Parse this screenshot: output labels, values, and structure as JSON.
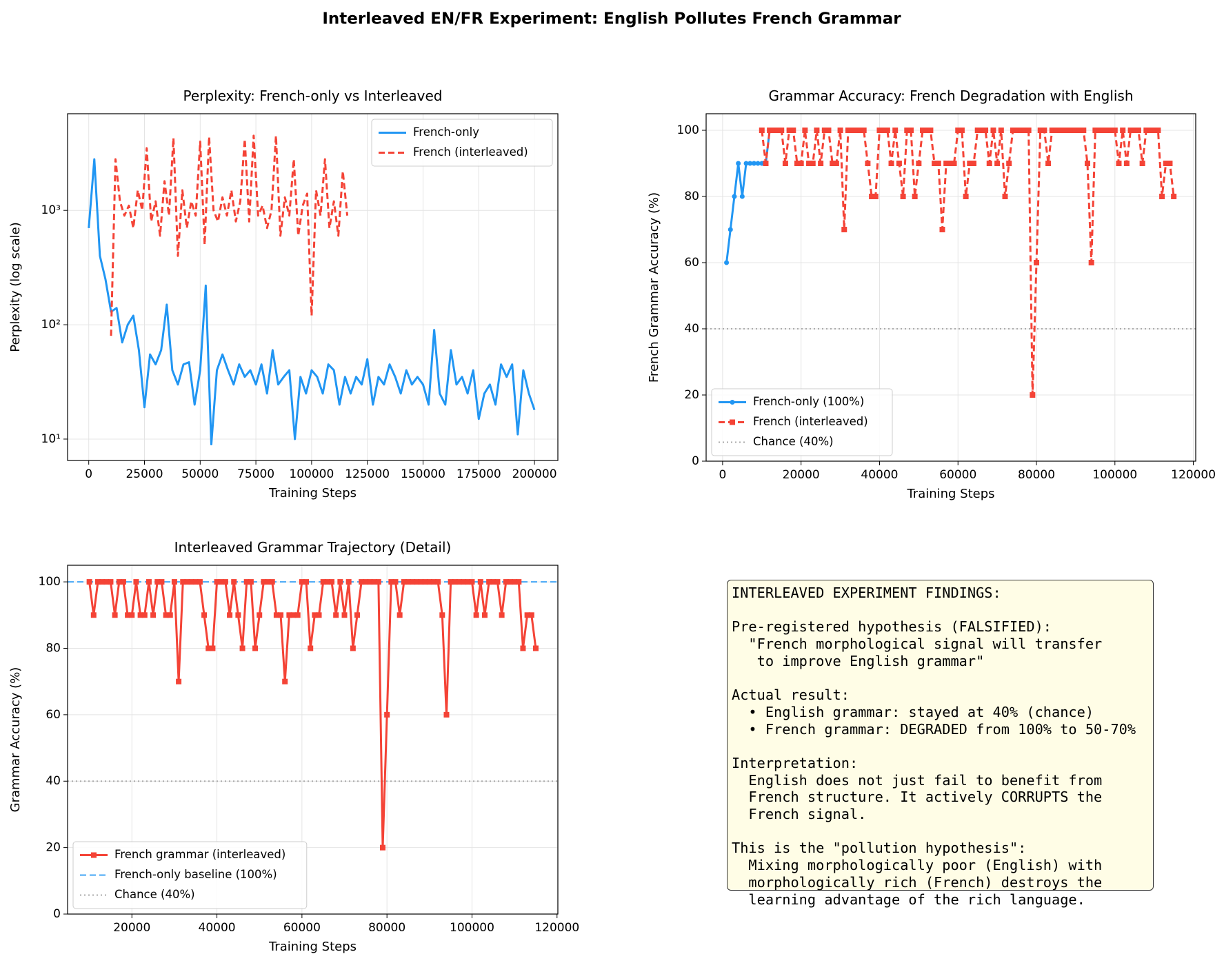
{
  "title": "Interleaved EN/FR Experiment: English Pollutes French Grammar",
  "chart_data": [
    {
      "type": "line",
      "title": "Perplexity: French-only vs Interleaved",
      "xlabel": "Training Steps",
      "ylabel": "Perplexity (log scale)",
      "yscale": "log",
      "grid": true,
      "legend": "upper right",
      "xlim": [
        -9500,
        210500
      ],
      "xticks": [
        0,
        25000,
        50000,
        75000,
        100000,
        125000,
        150000,
        175000,
        200000
      ],
      "ylim": [
        6.5,
        7000
      ],
      "yticks": [
        {
          "value": 10,
          "label": "10¹"
        },
        {
          "value": 100,
          "label": "10²"
        },
        {
          "value": 1000,
          "label": "10³"
        }
      ],
      "series": [
        {
          "name": "French-only",
          "color": "#2196f3",
          "linestyle": "solid",
          "marker": "none",
          "x": [
            0,
            2500,
            5000,
            7500,
            10000,
            12500,
            15000,
            17500,
            20000,
            22500,
            25000,
            27500,
            30000,
            32500,
            35000,
            37500,
            40000,
            42500,
            45000,
            47500,
            50000,
            52500,
            55000,
            57500,
            60000,
            62500,
            65000,
            67500,
            70000,
            72500,
            75000,
            77500,
            80000,
            82500,
            85000,
            87500,
            90000,
            92500,
            95000,
            97500,
            100000,
            102500,
            105000,
            107500,
            110000,
            112500,
            115000,
            117500,
            120000,
            122500,
            125000,
            127500,
            130000,
            132500,
            135000,
            137500,
            140000,
            142500,
            145000,
            147500,
            150000,
            152500,
            155000,
            157500,
            160000,
            162500,
            165000,
            167500,
            170000,
            172500,
            175000,
            177500,
            180000,
            182500,
            185000,
            187500,
            190000,
            192500,
            195000,
            197500,
            200000
          ],
          "values": [
            700,
            2800,
            400,
            250,
            130,
            140,
            70,
            100,
            120,
            60,
            19,
            55,
            45,
            60,
            150,
            40,
            30,
            45,
            47,
            20,
            40,
            220,
            9,
            40,
            55,
            40,
            30,
            45,
            35,
            40,
            30,
            45,
            25,
            60,
            30,
            35,
            40,
            10,
            35,
            25,
            40,
            35,
            25,
            45,
            40,
            20,
            35,
            25,
            35,
            30,
            50,
            20,
            35,
            30,
            45,
            35,
            25,
            40,
            30,
            35,
            30,
            20,
            90,
            25,
            20,
            60,
            30,
            35,
            25,
            40,
            15,
            25,
            30,
            20,
            45,
            35,
            45,
            11,
            40,
            25,
            18
          ]
        },
        {
          "name": "French (interleaved)",
          "color": "#f44336",
          "linestyle": "dashed",
          "marker": "none",
          "x": [
            10000,
            12000,
            14000,
            16000,
            18000,
            20000,
            22000,
            24000,
            26000,
            28000,
            30000,
            32000,
            34000,
            36000,
            38000,
            40000,
            42000,
            44000,
            46000,
            48000,
            50000,
            52000,
            54000,
            56000,
            58000,
            60000,
            62000,
            64000,
            66000,
            68000,
            70000,
            72000,
            74000,
            76000,
            78000,
            80000,
            82000,
            84000,
            86000,
            88000,
            90000,
            92000,
            94000,
            96000,
            98000,
            100000,
            102000,
            104000,
            106000,
            108000,
            110000,
            112000,
            114000,
            116000
          ],
          "values": [
            80,
            2800,
            1200,
            900,
            1100,
            700,
            1500,
            1000,
            3500,
            800,
            1200,
            600,
            1800,
            900,
            4300,
            400,
            1500,
            700,
            1200,
            900,
            4000,
            500,
            4400,
            1000,
            800,
            1300,
            900,
            1500,
            800,
            1200,
            4200,
            800,
            4500,
            900,
            1100,
            700,
            1000,
            4500,
            600,
            1300,
            900,
            2800,
            600,
            1100,
            1400,
            120,
            1500,
            900,
            2800,
            700,
            1200,
            600,
            2200,
            900
          ]
        }
      ]
    },
    {
      "type": "line",
      "title": "Grammar Accuracy: French Degradation with English",
      "xlabel": "Training Steps",
      "ylabel": "French Grammar Accuracy (%)",
      "grid": true,
      "legend": "lower left",
      "xlim": [
        -4200,
        120600
      ],
      "xticks": [
        0,
        20000,
        40000,
        60000,
        80000,
        100000,
        120000
      ],
      "ylim": [
        0,
        105
      ],
      "yticks": [
        0,
        20,
        40,
        60,
        80,
        100
      ],
      "series": [
        {
          "name": "French-only (100%)",
          "color": "#2196f3",
          "linestyle": "solid",
          "marker": "o",
          "x": [
            1000,
            2000,
            3000,
            4000,
            5000,
            6000,
            7000,
            8000,
            9000,
            10000,
            11000,
            12000,
            13000
          ],
          "values": [
            60,
            70,
            80,
            90,
            80,
            90,
            90,
            90,
            90,
            90,
            90,
            100,
            100
          ]
        },
        {
          "name": "French (interleaved)",
          "color": "#f44336",
          "linestyle": "dashed",
          "marker": "s",
          "x": [
            10000,
            11000,
            12000,
            13000,
            14000,
            15000,
            16000,
            17000,
            18000,
            19000,
            20000,
            21000,
            22000,
            23000,
            24000,
            25000,
            26000,
            27000,
            28000,
            29000,
            30000,
            31000,
            32000,
            33000,
            34000,
            35000,
            36000,
            37000,
            38000,
            39000,
            40000,
            41000,
            42000,
            43000,
            44000,
            45000,
            46000,
            47000,
            48000,
            49000,
            50000,
            51000,
            52000,
            53000,
            54000,
            55000,
            56000,
            57000,
            58000,
            59000,
            60000,
            61000,
            62000,
            63000,
            64000,
            65000,
            66000,
            67000,
            68000,
            69000,
            70000,
            71000,
            72000,
            73000,
            74000,
            75000,
            76000,
            77000,
            78000,
            79000,
            80000,
            81000,
            82000,
            83000,
            84000,
            85000,
            86000,
            87000,
            88000,
            89000,
            90000,
            91000,
            92000,
            93000,
            94000,
            95000,
            96000,
            97000,
            98000,
            99000,
            100000,
            101000,
            102000,
            103000,
            104000,
            105000,
            106000,
            107000,
            108000,
            109000,
            110000,
            111000,
            112000,
            113000,
            114000,
            115000
          ],
          "values": [
            100,
            90,
            100,
            100,
            100,
            100,
            90,
            100,
            100,
            90,
            90,
            100,
            90,
            90,
            100,
            90,
            100,
            100,
            90,
            90,
            100,
            70,
            100,
            100,
            100,
            100,
            100,
            90,
            80,
            80,
            100,
            100,
            100,
            90,
            100,
            90,
            80,
            100,
            100,
            80,
            90,
            100,
            100,
            100,
            90,
            90,
            70,
            90,
            90,
            90,
            100,
            100,
            80,
            90,
            90,
            100,
            100,
            100,
            90,
            100,
            90,
            100,
            80,
            90,
            100,
            100,
            100,
            100,
            100,
            20,
            60,
            100,
            100,
            90,
            100,
            100,
            100,
            100,
            100,
            100,
            100,
            100,
            100,
            90,
            60,
            100,
            100,
            100,
            100,
            100,
            100,
            90,
            100,
            90,
            100,
            100,
            100,
            90,
            100,
            100,
            100,
            100,
            80,
            90,
            90,
            80
          ]
        }
      ],
      "hlines": [
        {
          "name": "Chance (40%)",
          "y": 40,
          "color": "#aaaaaa",
          "linestyle": "dotted"
        }
      ]
    },
    {
      "type": "line",
      "title": "Interleaved Grammar Trajectory (Detail)",
      "xlabel": "Training Steps",
      "ylabel": "Grammar Accuracy (%)",
      "grid": true,
      "legend": "lower left",
      "xlim": [
        4870,
        120200
      ],
      "xticks": [
        20000,
        40000,
        60000,
        80000,
        100000,
        120000
      ],
      "ylim": [
        0,
        105
      ],
      "yticks": [
        0,
        20,
        40,
        60,
        80,
        100
      ],
      "series": [
        {
          "name": "French grammar (interleaved)",
          "color": "#f44336",
          "linestyle": "solid",
          "marker": "s",
          "x": [
            10000,
            11000,
            12000,
            13000,
            14000,
            15000,
            16000,
            17000,
            18000,
            19000,
            20000,
            21000,
            22000,
            23000,
            24000,
            25000,
            26000,
            27000,
            28000,
            29000,
            30000,
            31000,
            32000,
            33000,
            34000,
            35000,
            36000,
            37000,
            38000,
            39000,
            40000,
            41000,
            42000,
            43000,
            44000,
            45000,
            46000,
            47000,
            48000,
            49000,
            50000,
            51000,
            52000,
            53000,
            54000,
            55000,
            56000,
            57000,
            58000,
            59000,
            60000,
            61000,
            62000,
            63000,
            64000,
            65000,
            66000,
            67000,
            68000,
            69000,
            70000,
            71000,
            72000,
            73000,
            74000,
            75000,
            76000,
            77000,
            78000,
            79000,
            80000,
            81000,
            82000,
            83000,
            84000,
            85000,
            86000,
            87000,
            88000,
            89000,
            90000,
            91000,
            92000,
            93000,
            94000,
            95000,
            96000,
            97000,
            98000,
            99000,
            100000,
            101000,
            102000,
            103000,
            104000,
            105000,
            106000,
            107000,
            108000,
            109000,
            110000,
            111000,
            112000,
            113000,
            114000,
            115000
          ],
          "values": [
            100,
            90,
            100,
            100,
            100,
            100,
            90,
            100,
            100,
            90,
            90,
            100,
            90,
            90,
            100,
            90,
            100,
            100,
            90,
            90,
            100,
            70,
            100,
            100,
            100,
            100,
            100,
            90,
            80,
            80,
            100,
            100,
            100,
            90,
            100,
            90,
            80,
            100,
            100,
            80,
            90,
            100,
            100,
            100,
            90,
            90,
            70,
            90,
            90,
            90,
            100,
            100,
            80,
            90,
            90,
            100,
            100,
            100,
            90,
            100,
            90,
            100,
            80,
            90,
            100,
            100,
            100,
            100,
            100,
            20,
            60,
            100,
            100,
            90,
            100,
            100,
            100,
            100,
            100,
            100,
            100,
            100,
            100,
            90,
            60,
            100,
            100,
            100,
            100,
            100,
            100,
            90,
            100,
            90,
            100,
            100,
            100,
            90,
            100,
            100,
            100,
            100,
            80,
            90,
            90,
            80
          ]
        }
      ],
      "hlines": [
        {
          "name": "French-only baseline (100%)",
          "y": 100,
          "color": "#42a5f5",
          "linestyle": "dashed"
        },
        {
          "name": "Chance (40%)",
          "y": 40,
          "color": "#aaaaaa",
          "linestyle": "dotted"
        }
      ]
    }
  ],
  "findings": {
    "paragraphs": [
      [
        "INTERLEAVED EXPERIMENT FINDINGS:"
      ],
      [
        "Pre-registered hypothesis (FALSIFIED):",
        "  \"French morphological signal will transfer",
        "   to improve English grammar\""
      ],
      [
        "Actual result:",
        "  • English grammar: stayed at 40% (chance)",
        "  • French grammar: DEGRADED from 100% to 50-70%"
      ],
      [
        "Interpretation:",
        "  English does not just fail to benefit from",
        "  French structure. It actively CORRUPTS the",
        "  French signal."
      ],
      [
        "This is the \"pollution hypothesis\":",
        "  Mixing morphologically poor (English) with",
        "  morphologically rich (French) destroys the",
        "  learning advantage of the rich language."
      ]
    ]
  }
}
